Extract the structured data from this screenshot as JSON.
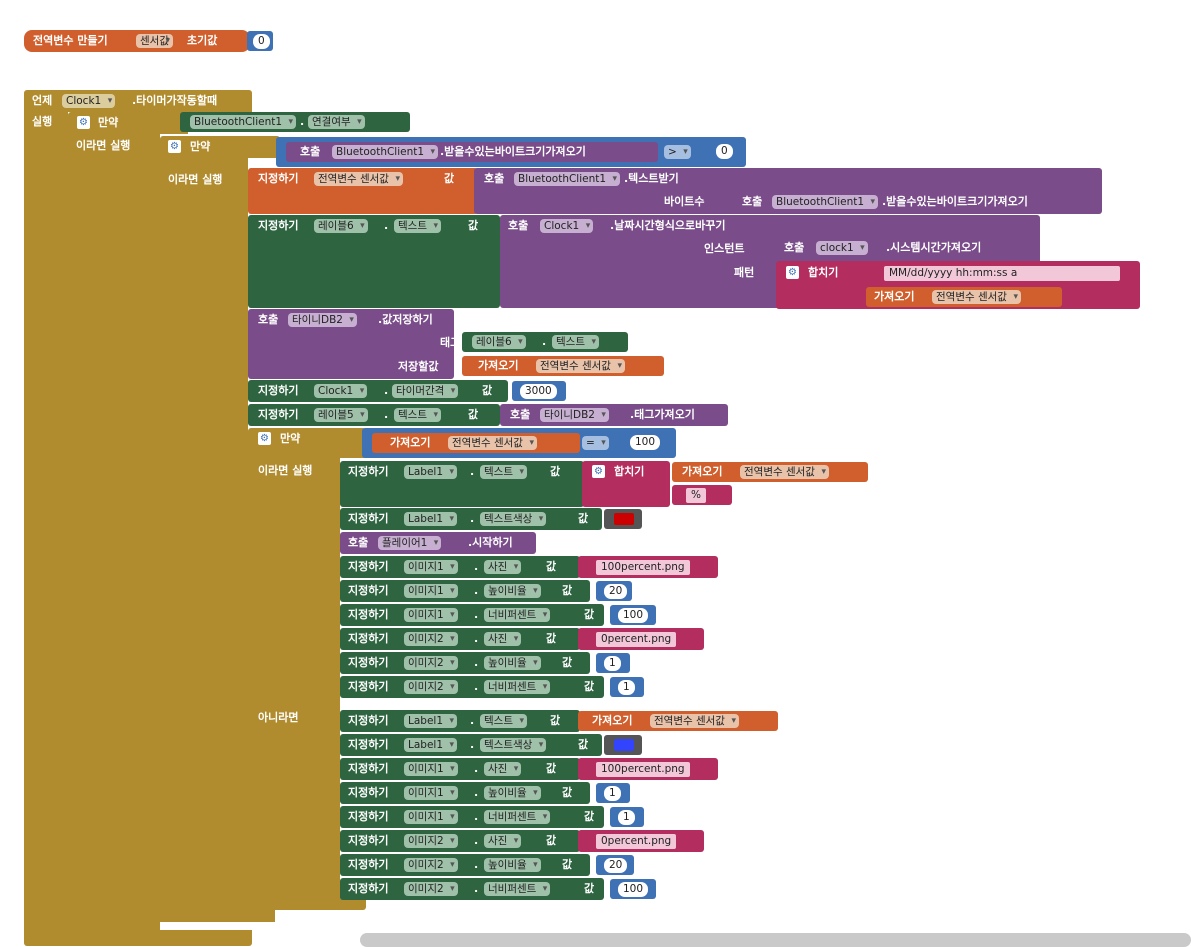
{
  "kw": {
    "init_global": "전역변수 만들기",
    "init_value": "초기값",
    "when": "언제",
    "timer_event": ".타이머가작동할때",
    "do": "실행",
    "if": "만약",
    "then": "이라면 실행",
    "else": "아니라면",
    "set": "지정하기",
    "to": "값",
    "call": "호출",
    "get": "가져오기",
    "join": "합치기",
    "bytes": "바이트수",
    "instant": "인스턴트",
    "pattern": "패턴",
    "tag": "태그",
    "value_to_store": "저장할값",
    "dot": "."
  },
  "components": {
    "clock": "Clock1",
    "clock_lower": "clock1",
    "bt": "BluetoothClient1",
    "label6": "레이블6",
    "label5": "레이블5",
    "label1": "Label1",
    "tinydb": "타이니DB2",
    "player": "플레이어1",
    "image1": "이미지1",
    "image2": "이미지2"
  },
  "props": {
    "connected": "연결여부",
    "text": "텍스트",
    "timer_interval": "타이머간격",
    "text_color": "텍스트색상",
    "picture": "사진",
    "height_percent": "높이비율",
    "width_percent": "너비퍼센트"
  },
  "methods": {
    "bytes_available": ".받을수있는바이트크기가져오기",
    "receive_text": ".텍스트받기",
    "format_datetime": ".날짜시간형식으로바꾸기",
    "system_time": ".시스템시간가져오기",
    "store_value": ".값저장하기",
    "get_tags": ".태그가져오기",
    "start": ".시작하기"
  },
  "vars": {
    "global_name": "센서값",
    "global_ref": "전역변수 센서값"
  },
  "ops": {
    "gt": ">",
    "eq": "="
  },
  "values": {
    "init": "0",
    "zero": "0",
    "hundred": "100",
    "interval": "3000",
    "twenty": "20",
    "one": "1",
    "pattern": "MM/dd/yyyy hh:mm:ss a",
    "percent": "%",
    "img100": "100percent.png",
    "img0": "0percent.png"
  },
  "colors": {
    "red": "#cc0000",
    "blue": "#3344ff"
  }
}
